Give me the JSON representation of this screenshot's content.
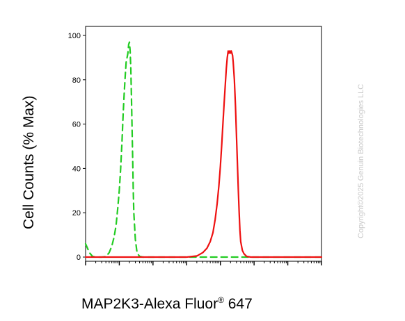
{
  "chart_data": {
    "type": "line",
    "title": "",
    "ylabel": "Cell Counts (% Max)",
    "xlabel": {
      "text": "MAP2K3-Alexa Fluor",
      "superscript": "®",
      "suffix": " 647"
    },
    "x_scale": "log",
    "xlim": [
      1,
      10000000
    ],
    "ylim": [
      0,
      100
    ],
    "y_ticks": [
      "0",
      "20",
      "40",
      "60",
      "80",
      "100"
    ],
    "series": [
      {
        "style": "dashed",
        "color": "#22cc22",
        "x": [
          1,
          1.3,
          1.6,
          2,
          2.5,
          3,
          4,
          5,
          6,
          7,
          8,
          9,
          10,
          11,
          12,
          13,
          14,
          15,
          16,
          17,
          18,
          19,
          20,
          21,
          22,
          23,
          24,
          25,
          26,
          27,
          30,
          33,
          35,
          40,
          50,
          100,
          10000000
        ],
        "y": [
          6,
          2,
          0.3,
          0,
          0,
          0,
          0.2,
          2,
          5,
          9,
          14,
          22,
          30,
          40,
          52,
          64,
          74,
          82,
          88,
          90,
          92,
          96,
          97,
          93,
          85,
          72,
          58,
          44,
          30,
          20,
          8,
          3,
          1.5,
          0.3,
          0,
          0,
          0
        ]
      },
      {
        "style": "solid",
        "color": "#ee1111",
        "x": [
          1,
          100,
          1000,
          2000,
          3000,
          4000,
          5000,
          6000,
          7000,
          8000,
          9000,
          10000,
          11000,
          12000,
          13000,
          14000,
          15000,
          16000,
          17000,
          18000,
          19000,
          20000,
          21000,
          22000,
          23000,
          24000,
          26000,
          28000,
          30000,
          32000,
          34000,
          36000,
          38000,
          40000,
          45000,
          50000,
          60000,
          80000,
          100000,
          10000000
        ],
        "y": [
          0,
          0,
          0,
          0.5,
          2,
          4,
          7,
          11,
          17,
          24,
          32,
          41,
          51,
          61,
          70,
          78,
          85,
          90,
          93,
          92,
          93,
          92,
          93,
          92,
          91,
          88,
          80,
          68,
          55,
          42,
          30,
          20,
          12,
          7,
          3,
          1.5,
          0.3,
          0,
          0,
          0
        ]
      }
    ]
  },
  "watermark": "Copyright©2025 Genuin Biotechnologies LLC"
}
